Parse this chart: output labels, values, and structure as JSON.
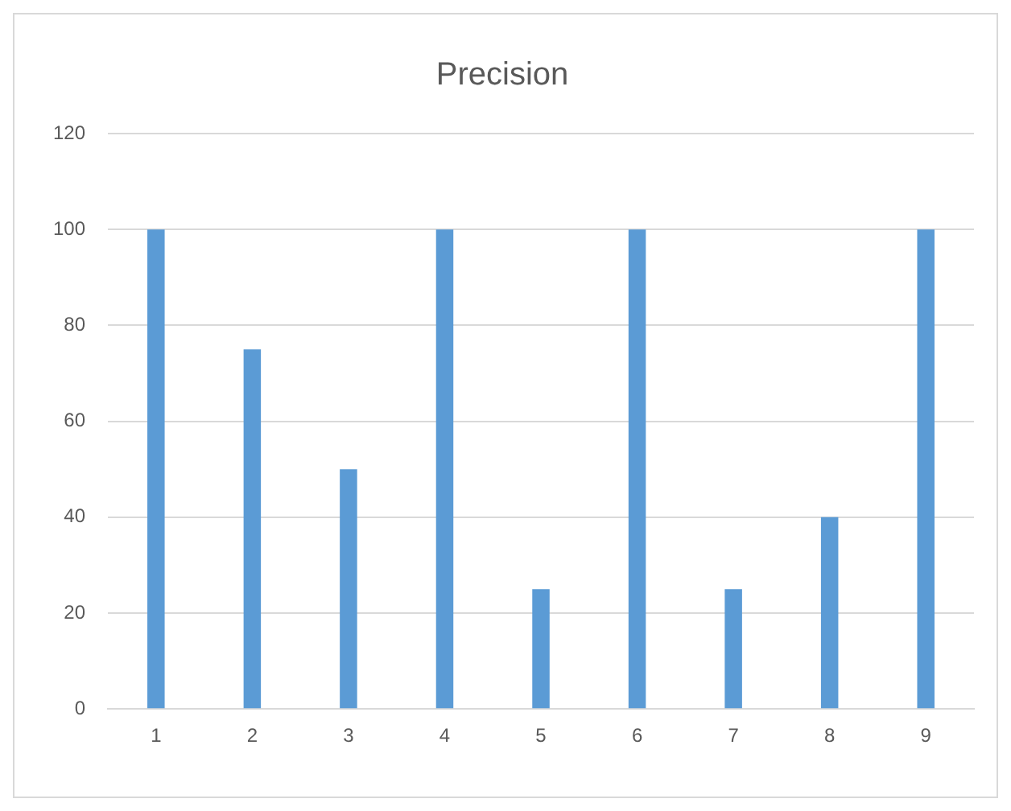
{
  "chart_data": {
    "type": "bar",
    "title": "Precision",
    "categories": [
      "1",
      "2",
      "3",
      "4",
      "5",
      "6",
      "7",
      "8",
      "9"
    ],
    "values": [
      100,
      75,
      50,
      100,
      25,
      100,
      25,
      40,
      100
    ],
    "color": "#5b9bd5",
    "ylim": [
      0,
      120
    ],
    "yticks": [
      0,
      20,
      40,
      60,
      80,
      100,
      120
    ],
    "grid": "y",
    "legend": false
  }
}
